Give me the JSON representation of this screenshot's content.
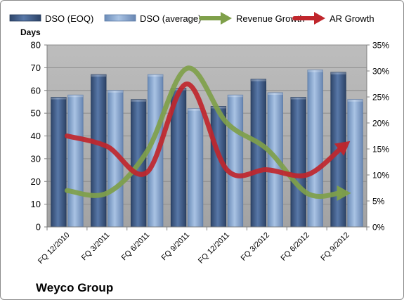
{
  "colors": {
    "dso_eoq": "#3f5a85",
    "dso_average": "#7f9fc8",
    "revenue_growth": "#7fa04a",
    "ar_growth": "#c0262c",
    "plot_bg": "#a5a5a5"
  },
  "chart_data": {
    "type": "bar",
    "title": "",
    "categories": [
      "FQ 12/2010",
      "FQ 3/2011",
      "FQ 6/2011",
      "FQ 9/2011",
      "FQ 12/2011",
      "FQ 3/2012",
      "FQ 6/2012",
      "FQ 9/2012"
    ],
    "ylabel": "Days",
    "ylim": [
      0,
      80
    ],
    "yticks": [
      "0",
      "10",
      "20",
      "30",
      "40",
      "50",
      "60",
      "70",
      "80"
    ],
    "y2lim": [
      0,
      35
    ],
    "y2ticks": [
      "0%",
      "5%",
      "10%",
      "15%",
      "20%",
      "25%",
      "30%",
      "35%"
    ],
    "legend_position": "top",
    "series": [
      {
        "name": "DSO (EOQ)",
        "type": "bar",
        "axis": "left",
        "values": [
          57,
          67,
          56,
          61,
          53,
          65,
          57,
          68
        ]
      },
      {
        "name": "DSO (average)",
        "type": "bar",
        "axis": "left",
        "values": [
          58,
          60,
          67,
          52,
          58,
          59,
          69,
          56
        ]
      },
      {
        "name": "Revenue Growth",
        "type": "line",
        "axis": "right",
        "unit": "%",
        "values": [
          7,
          6.5,
          14.5,
          30.5,
          20,
          15,
          6.5,
          6.5
        ]
      },
      {
        "name": "AR Growth",
        "type": "line",
        "axis": "right",
        "unit": "%",
        "values": [
          17.5,
          15.5,
          10.5,
          27.5,
          11,
          11,
          10,
          16
        ]
      }
    ]
  },
  "footer": {
    "company": "Weyco Group"
  }
}
